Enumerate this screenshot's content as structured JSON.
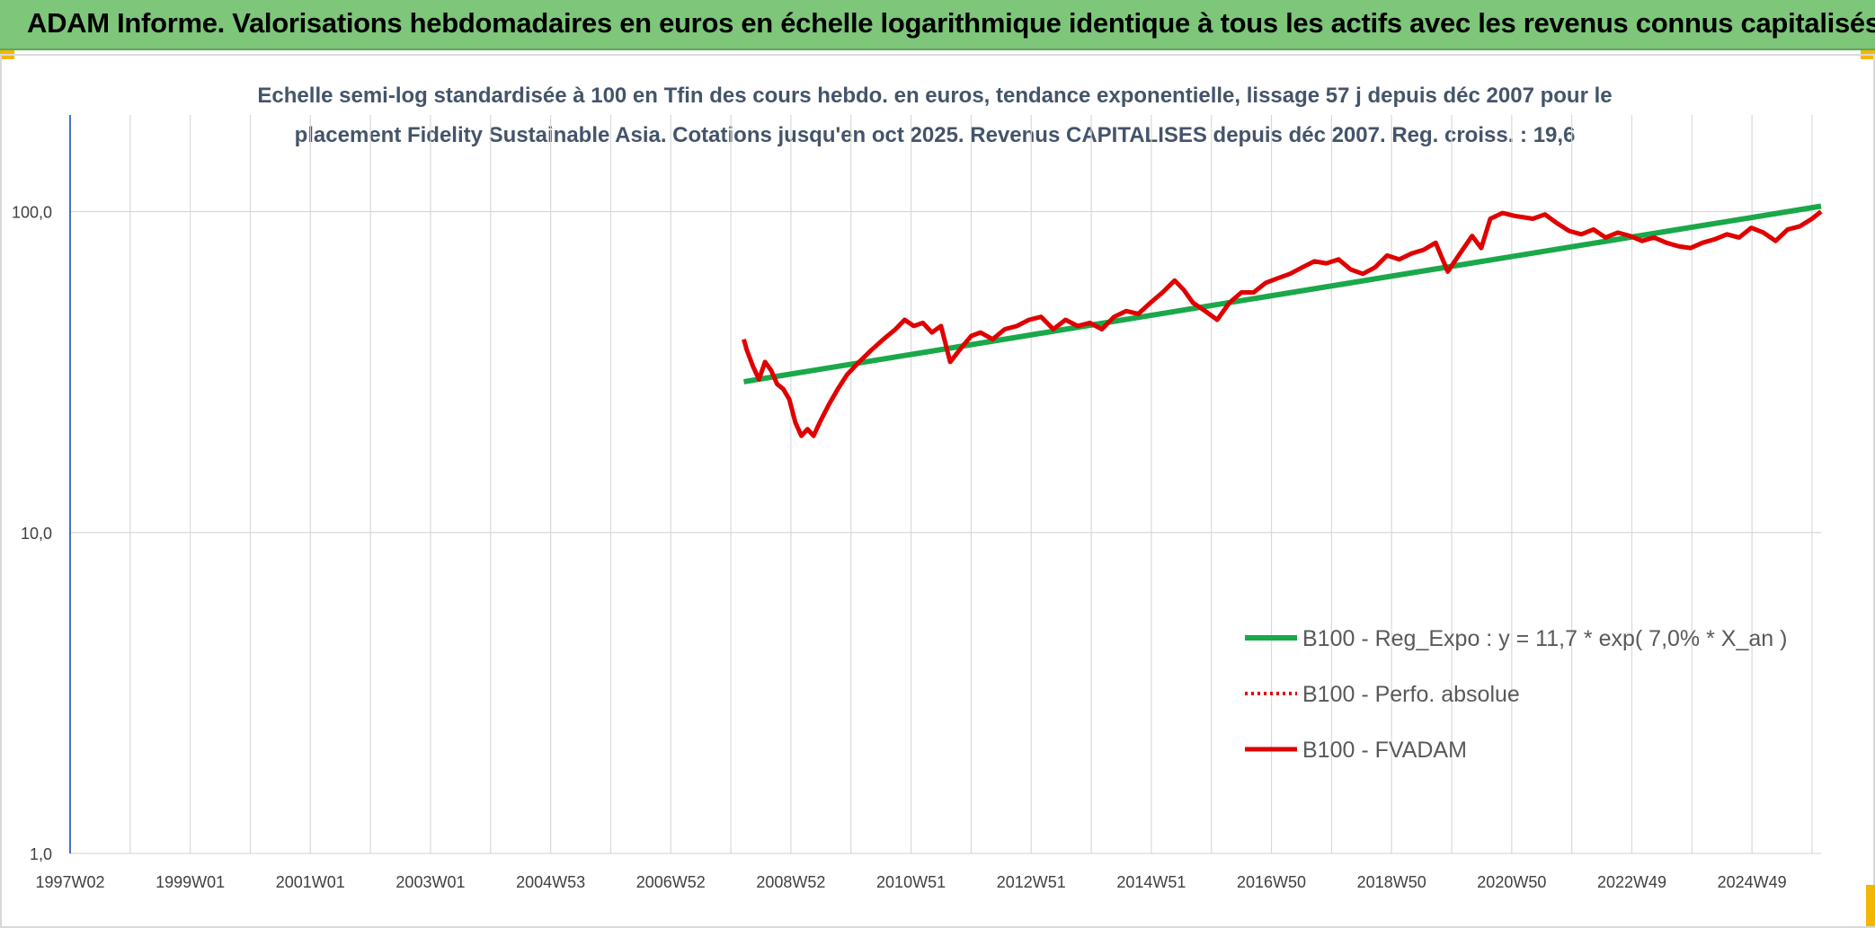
{
  "banner": {
    "title": "ADAM Informe. Valorisations hebdomadaires en euros en échelle logarithmique identique à tous les actifs avec les revenus connus capitalisés"
  },
  "chart_data": {
    "type": "line",
    "subtitle_line1": "Echelle semi-log standardisée à 100 en Tfin des cours hebdo. en euros, tendance exponentielle, lissage 57 j depuis déc 2007 pour le",
    "subtitle_line2": "placement Fidelity Sustainable Asia. Cotations jusqu'en oct 2025. Revenus CAPITALISES depuis déc 2007. Reg. croiss. : 19,6",
    "y_scale": "log",
    "ylim": [
      1,
      200
    ],
    "y_ticks": [
      "1,0",
      "10,0",
      "100,0"
    ],
    "x_tick_labels": [
      "1997W02",
      "1999W01",
      "2001W01",
      "2003W01",
      "2004W53",
      "2006W52",
      "2008W52",
      "2010W51",
      "2012W51",
      "2014W51",
      "2016W50",
      "2018W50",
      "2020W50",
      "2022W49",
      "2024W49"
    ],
    "xlim": [
      1997.0,
      2025.85
    ],
    "grid": true,
    "legend_position": "bottom-right",
    "colors": {
      "regression": "#1aa84a",
      "perf_absolue": "#e00000",
      "fvadam": "#e00000",
      "axis": "#4472c4",
      "grid": "#d9d9d9"
    },
    "series": [
      {
        "name": "B100 - Reg_Expo : y = 11,7 * exp( 7,0% *  X_an )",
        "style": "solid-green-thick",
        "x": [
          2008.1,
          2025.85
        ],
        "values": [
          29.5,
          104
        ]
      },
      {
        "name": "B100 - Perfo. absolue",
        "style": "dotted-red",
        "x": [],
        "values": []
      },
      {
        "name": "B100 - FVADAM",
        "style": "solid-red-thick",
        "x": [
          2008.1,
          2008.15,
          2008.25,
          2008.35,
          2008.45,
          2008.55,
          2008.65,
          2008.75,
          2008.85,
          2008.95,
          2009.05,
          2009.15,
          2009.25,
          2009.35,
          2009.5,
          2009.65,
          2009.8,
          2010.0,
          2010.2,
          2010.4,
          2010.6,
          2010.75,
          2010.9,
          2011.05,
          2011.2,
          2011.35,
          2011.5,
          2011.7,
          2011.85,
          2012.0,
          2012.2,
          2012.4,
          2012.6,
          2012.8,
          2013.0,
          2013.2,
          2013.4,
          2013.6,
          2013.8,
          2014.0,
          2014.2,
          2014.4,
          2014.6,
          2014.8,
          2015.0,
          2015.2,
          2015.35,
          2015.5,
          2015.7,
          2015.9,
          2016.1,
          2016.3,
          2016.5,
          2016.7,
          2016.9,
          2017.1,
          2017.3,
          2017.5,
          2017.7,
          2017.9,
          2018.1,
          2018.3,
          2018.5,
          2018.7,
          2018.9,
          2019.1,
          2019.3,
          2019.5,
          2019.7,
          2019.9,
          2020.1,
          2020.25,
          2020.4,
          2020.6,
          2020.8,
          2020.95,
          2021.1,
          2021.3,
          2021.5,
          2021.7,
          2021.9,
          2022.1,
          2022.3,
          2022.5,
          2022.7,
          2022.9,
          2023.1,
          2023.3,
          2023.5,
          2023.7,
          2023.9,
          2024.1,
          2024.3,
          2024.5,
          2024.7,
          2024.9,
          2025.1,
          2025.3,
          2025.5,
          2025.7,
          2025.85
        ],
        "values": [
          40,
          37,
          33,
          30,
          34,
          32,
          29,
          28,
          26,
          22,
          20,
          21,
          20,
          22,
          25,
          28,
          31,
          34,
          37,
          40,
          43,
          46,
          44,
          45,
          42,
          44,
          34,
          38,
          41,
          42,
          40,
          43,
          44,
          46,
          47,
          43,
          46,
          44,
          45,
          43,
          47,
          49,
          48,
          52,
          56,
          61,
          57,
          52,
          49,
          46,
          52,
          56,
          56,
          60,
          62,
          64,
          67,
          70,
          69,
          71,
          66,
          64,
          67,
          73,
          71,
          74,
          76,
          80,
          65,
          74,
          84,
          77,
          95,
          99,
          97,
          96,
          95,
          98,
          92,
          87,
          85,
          88,
          83,
          86,
          84,
          81,
          83,
          80,
          78,
          77,
          80,
          82,
          85,
          83,
          89,
          86,
          81,
          88,
          90,
          95,
          100
        ]
      }
    ]
  }
}
